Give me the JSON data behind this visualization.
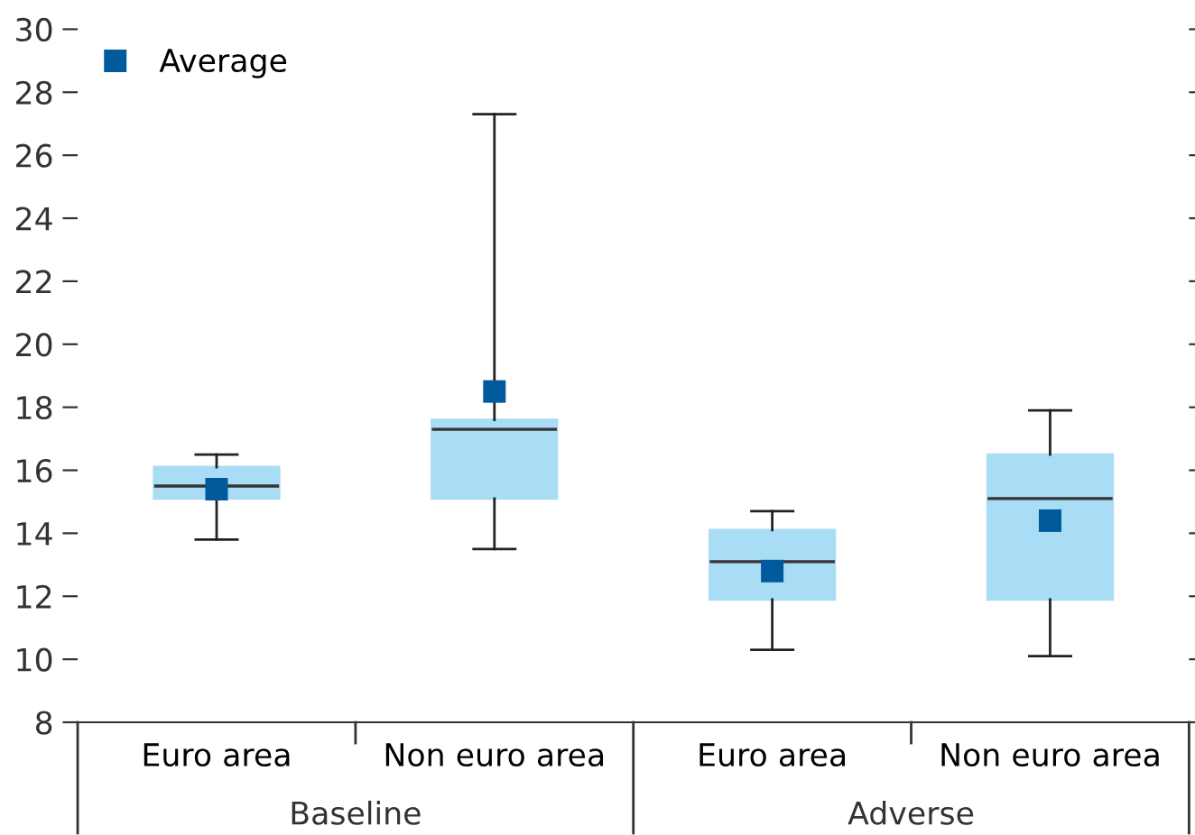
{
  "chart_data": {
    "type": "box",
    "categories": [
      "Euro area",
      "Non euro area",
      "Euro area",
      "Non euro area"
    ],
    "series": [
      {
        "color": "#a9dcf5",
        "boxes": [
          {
            "low": 13.8,
            "q1": 15.1,
            "median": 15.5,
            "q3": 16.1,
            "high": 16.5
          },
          {
            "low": 13.5,
            "q1": 15.1,
            "median": 17.3,
            "q3": 17.6,
            "high": 27.3
          },
          {
            "low": 10.3,
            "q1": 11.9,
            "median": 13.1,
            "q3": 14.1,
            "high": 14.7
          },
          {
            "low": 10.1,
            "q1": 11.9,
            "median": 15.1,
            "q3": 16.5,
            "high": 17.9
          }
        ]
      },
      {
        "type": "scatter",
        "name": "Average",
        "color": "#005a9c",
        "marker": "square",
        "values": [
          15.4,
          18.5,
          12.8,
          14.4
        ]
      }
    ],
    "annotations": [
      "Baseline",
      "Adverse"
    ],
    "ylim": [
      8,
      30
    ],
    "yticks": [
      8,
      10,
      12,
      14,
      16,
      18,
      20,
      22,
      24,
      26,
      28,
      30
    ],
    "legend": "top left",
    "grid": false
  }
}
